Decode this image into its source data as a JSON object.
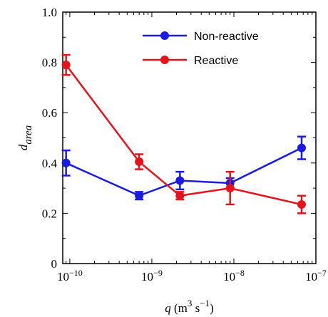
{
  "chart_data": {
    "type": "line",
    "x_label": [
      "q",
      " (m",
      "3",
      " s",
      "−1",
      ")"
    ],
    "y_label": [
      "d",
      "area"
    ],
    "x": [
      9e-11,
      7e-10,
      2.2e-09,
      9e-09,
      6.7e-08
    ],
    "series": [
      {
        "name": "Non-reactive",
        "color": "#1a1ae6",
        "values": [
          0.4,
          0.27,
          0.33,
          0.32,
          0.46
        ],
        "errors": [
          0.05,
          0.015,
          0.035,
          0.02,
          0.045
        ]
      },
      {
        "name": "Reactive",
        "color": "#e6141a",
        "values": [
          0.79,
          0.405,
          0.27,
          0.3,
          0.235
        ],
        "errors": [
          0.04,
          0.03,
          0.015,
          0.065,
          0.035
        ]
      }
    ],
    "xscale": "log",
    "xlim": [
      8.2e-11,
      1e-07
    ],
    "xticks": [
      {
        "value": 1e-10,
        "label": "10−10"
      },
      {
        "value": 1e-09,
        "label": "10−9"
      },
      {
        "value": 1e-08,
        "label": "10−8"
      },
      {
        "value": 1e-07,
        "label": "10−7"
      }
    ],
    "ylim": [
      0,
      1
    ],
    "yticks": [
      0,
      0.2,
      0.4,
      0.6,
      0.8,
      {
        "value": 1,
        "label": "1.0"
      }
    ],
    "legend": "upper right"
  }
}
